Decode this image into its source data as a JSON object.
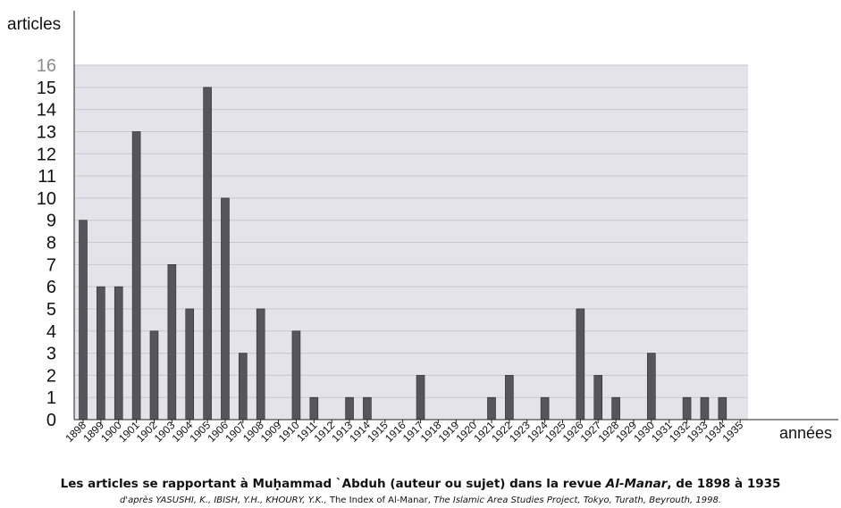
{
  "chart_data": {
    "type": "bar",
    "ylabel": "articles",
    "xlabel": "années",
    "ylim": [
      0,
      16
    ],
    "yticks": [
      "0",
      "1",
      "2",
      "3",
      "4",
      "5",
      "6",
      "7",
      "8",
      "9",
      "10",
      "11",
      "12",
      "13",
      "14",
      "15",
      "16"
    ],
    "grid": true,
    "categories": [
      "1898",
      "1899",
      "1900",
      "1901",
      "1902",
      "1903",
      "1904",
      "1905",
      "1906",
      "1907",
      "1908",
      "1909",
      "1910",
      "1911",
      "1912",
      "1913",
      "1914",
      "1915",
      "1916",
      "1917",
      "1918",
      "1919",
      "1920",
      "1921",
      "1922",
      "1923",
      "1924",
      "1925",
      "1926",
      "1927",
      "1928",
      "1929",
      "1930",
      "1931",
      "1932",
      "1933",
      "1934",
      "1935"
    ],
    "values": [
      9,
      6,
      6,
      13,
      4,
      7,
      5,
      15,
      10,
      3,
      5,
      0,
      4,
      1,
      0,
      1,
      1,
      0,
      0,
      2,
      0,
      0,
      0,
      1,
      2,
      0,
      1,
      0,
      5,
      2,
      1,
      0,
      3,
      0,
      1,
      1,
      1,
      0
    ],
    "colors": {
      "bar": "#55565c",
      "plot_background": "#e4e3ea",
      "grid": "#c8c7d0",
      "top_tick": "#8c8c8c"
    }
  },
  "caption": {
    "title_pre": "Les articles se rapportant à Muḥammad `Abduh (auteur ou sujet) dans la revue ",
    "title_italic": "Al-Manar",
    "title_post": ", de 1898 à 1935",
    "source_pre": "d'après YASUSHI, K., IBISH, Y.H., KHOURY, Y.K., ",
    "source_normal": "The Index of Al-Manar, ",
    "source_post": "The Islamic  Area Studies Project, Tokyo, Turath, Beyrouth, 1998."
  }
}
